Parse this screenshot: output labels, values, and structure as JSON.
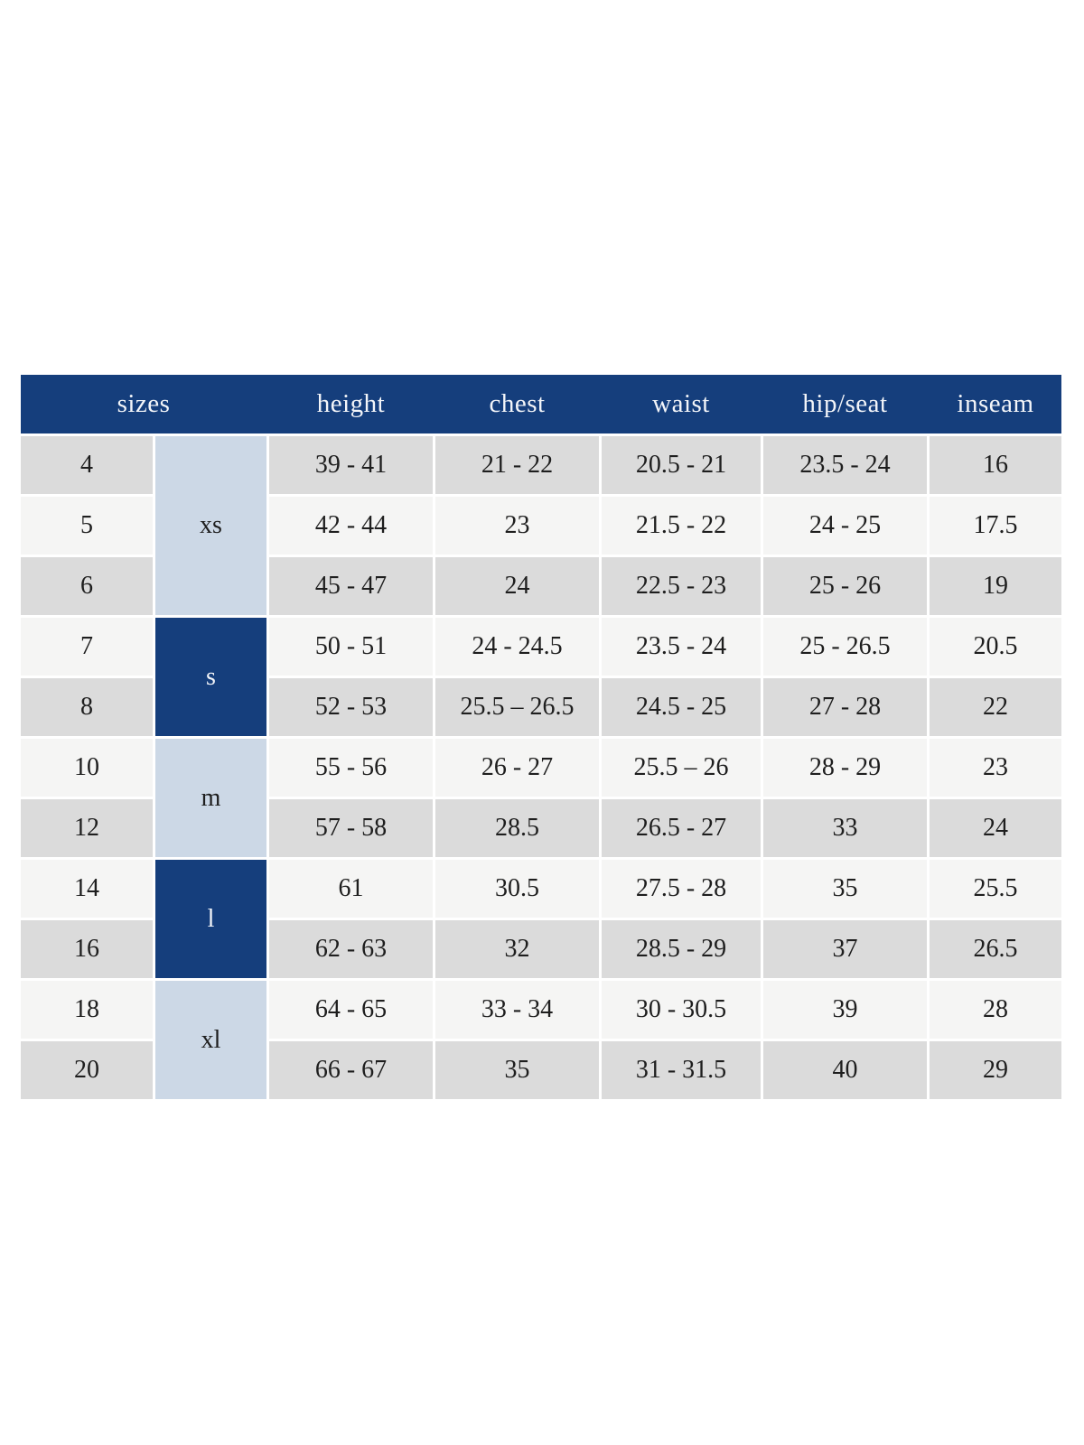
{
  "colors": {
    "header_background": "#153e7c",
    "header_text": "#f3f5f9",
    "row_shaded": "#dbdbdb",
    "row_plain": "#f5f5f4",
    "group_light_blue": "#ccd8e6",
    "group_dark_blue": "#153e7c",
    "body_text": "#1e1e1e",
    "page_background": "#ffffff"
  },
  "chart_data": {
    "type": "table",
    "columns": [
      "sizes",
      "height",
      "chest",
      "waist",
      "hip/seat",
      "inseam"
    ],
    "groups": [
      {
        "label": "xs",
        "row_span": 3,
        "style": "light"
      },
      {
        "label": "s",
        "row_span": 2,
        "style": "dark"
      },
      {
        "label": "m",
        "row_span": 2,
        "style": "light"
      },
      {
        "label": "l",
        "row_span": 2,
        "style": "dark"
      },
      {
        "label": "xl",
        "row_span": 2,
        "style": "light"
      }
    ],
    "rows": [
      {
        "size": "4",
        "height": "39 - 41",
        "chest": "21 - 22",
        "waist": "20.5 - 21",
        "hip_seat": "23.5 - 24",
        "inseam": "16"
      },
      {
        "size": "5",
        "height": "42 - 44",
        "chest": "23",
        "waist": "21.5 - 22",
        "hip_seat": "24 - 25",
        "inseam": "17.5"
      },
      {
        "size": "6",
        "height": "45 - 47",
        "chest": "24",
        "waist": "22.5 - 23",
        "hip_seat": "25 - 26",
        "inseam": "19"
      },
      {
        "size": "7",
        "height": "50 - 51",
        "chest": "24 - 24.5",
        "waist": "23.5 - 24",
        "hip_seat": "25 - 26.5",
        "inseam": "20.5"
      },
      {
        "size": "8",
        "height": "52 - 53",
        "chest": "25.5 – 26.5",
        "waist": "24.5 - 25",
        "hip_seat": "27 - 28",
        "inseam": "22"
      },
      {
        "size": "10",
        "height": "55 - 56",
        "chest": "26 - 27",
        "waist": "25.5 – 26",
        "hip_seat": "28 - 29",
        "inseam": "23"
      },
      {
        "size": "12",
        "height": "57 - 58",
        "chest": "28.5",
        "waist": "26.5 - 27",
        "hip_seat": "33",
        "inseam": "24"
      },
      {
        "size": "14",
        "height": "61",
        "chest": "30.5",
        "waist": "27.5 - 28",
        "hip_seat": "35",
        "inseam": "25.5"
      },
      {
        "size": "16",
        "height": "62 - 63",
        "chest": "32",
        "waist": "28.5 - 29",
        "hip_seat": "37",
        "inseam": "26.5"
      },
      {
        "size": "18",
        "height": "64 - 65",
        "chest": "33 - 34",
        "waist": "30 - 30.5",
        "hip_seat": "39",
        "inseam": "28"
      },
      {
        "size": "20",
        "height": "66 - 67",
        "chest": "35",
        "waist": "31 - 31.5",
        "hip_seat": "40",
        "inseam": "29"
      }
    ]
  }
}
